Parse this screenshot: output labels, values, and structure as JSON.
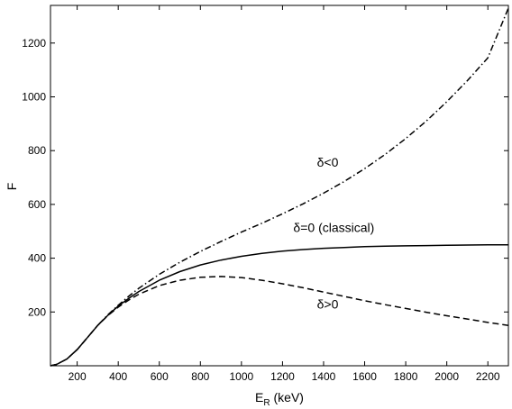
{
  "chart_data": {
    "type": "line",
    "title": "",
    "xlabel": "E",
    "xlabel_sub": "R",
    "xlabel_unit": " (keV)",
    "ylabel": "F",
    "xlim": [
      70,
      2300
    ],
    "ylim": [
      0,
      1340
    ],
    "xticks": [
      200,
      400,
      600,
      800,
      1000,
      1200,
      1400,
      1600,
      1800,
      2000,
      2200
    ],
    "yticks": [
      200,
      400,
      600,
      800,
      1000,
      1200
    ],
    "grid": false,
    "legend": "none",
    "series": [
      {
        "name": "δ<0",
        "style": "dashdot",
        "label_at": [
          1420,
          740
        ],
        "points": [
          [
            70,
            0
          ],
          [
            100,
            5
          ],
          [
            150,
            25
          ],
          [
            200,
            60
          ],
          [
            250,
            105
          ],
          [
            300,
            150
          ],
          [
            350,
            190
          ],
          [
            400,
            225
          ],
          [
            450,
            258
          ],
          [
            500,
            288
          ],
          [
            600,
            340
          ],
          [
            700,
            385
          ],
          [
            800,
            425
          ],
          [
            900,
            462
          ],
          [
            1000,
            497
          ],
          [
            1100,
            530
          ],
          [
            1200,
            565
          ],
          [
            1300,
            602
          ],
          [
            1400,
            642
          ],
          [
            1500,
            685
          ],
          [
            1600,
            733
          ],
          [
            1700,
            786
          ],
          [
            1800,
            845
          ],
          [
            1900,
            910
          ],
          [
            2000,
            982
          ],
          [
            2100,
            1060
          ],
          [
            2200,
            1145
          ],
          [
            2300,
            1330
          ]
        ]
      },
      {
        "name": "δ=0 (classical)",
        "style": "solid",
        "label_at": [
          1450,
          497
        ],
        "points": [
          [
            70,
            0
          ],
          [
            100,
            5
          ],
          [
            150,
            25
          ],
          [
            200,
            60
          ],
          [
            250,
            105
          ],
          [
            300,
            150
          ],
          [
            350,
            188
          ],
          [
            400,
            222
          ],
          [
            450,
            250
          ],
          [
            500,
            276
          ],
          [
            600,
            318
          ],
          [
            700,
            350
          ],
          [
            800,
            375
          ],
          [
            900,
            393
          ],
          [
            1000,
            407
          ],
          [
            1100,
            418
          ],
          [
            1200,
            426
          ],
          [
            1300,
            432
          ],
          [
            1400,
            437
          ],
          [
            1500,
            440
          ],
          [
            1600,
            443
          ],
          [
            1700,
            445
          ],
          [
            1800,
            446
          ],
          [
            1900,
            447
          ],
          [
            2000,
            448
          ],
          [
            2100,
            449
          ],
          [
            2200,
            450
          ],
          [
            2300,
            450
          ]
        ]
      },
      {
        "name": "δ>0",
        "style": "dashed",
        "label_at": [
          1420,
          212
        ],
        "points": [
          [
            70,
            0
          ],
          [
            100,
            5
          ],
          [
            150,
            25
          ],
          [
            200,
            60
          ],
          [
            250,
            105
          ],
          [
            300,
            150
          ],
          [
            350,
            187
          ],
          [
            400,
            218
          ],
          [
            450,
            244
          ],
          [
            500,
            266
          ],
          [
            600,
            298
          ],
          [
            700,
            318
          ],
          [
            800,
            329
          ],
          [
            900,
            332
          ],
          [
            1000,
            328
          ],
          [
            1100,
            318
          ],
          [
            1200,
            305
          ],
          [
            1300,
            290
          ],
          [
            1400,
            274
          ],
          [
            1500,
            258
          ],
          [
            1600,
            242
          ],
          [
            1700,
            227
          ],
          [
            1800,
            213
          ],
          [
            1900,
            199
          ],
          [
            2000,
            186
          ],
          [
            2100,
            174
          ],
          [
            2200,
            161
          ],
          [
            2300,
            150
          ]
        ]
      }
    ]
  }
}
